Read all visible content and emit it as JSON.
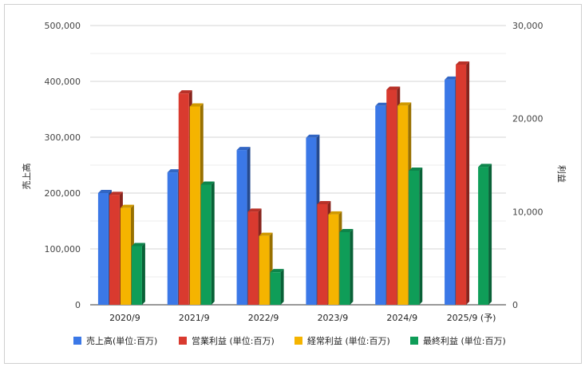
{
  "chart_data": {
    "type": "bar",
    "categories": [
      "2020/9",
      "2021/9",
      "2022/9",
      "2023/9",
      "2024/9",
      "2025/9 (予)"
    ],
    "series": [
      {
        "name": "売上高(単位:百万)",
        "axis": "left",
        "color": "#3b78e7",
        "values": [
          200000,
          237000,
          277000,
          299000,
          356000,
          403000
        ]
      },
      {
        "name": "営業利益 (単位:百万)",
        "axis": "right",
        "color": "#d93a2f",
        "values": [
          11800,
          22700,
          10000,
          10800,
          23100,
          25800
        ]
      },
      {
        "name": "経常利益 (単位:百万)",
        "axis": "right",
        "color": "#f5b400",
        "values": [
          10400,
          21300,
          7400,
          9700,
          21400,
          null
        ]
      },
      {
        "name": "最終利益 (単位:百万)",
        "axis": "right",
        "color": "#0f9d58",
        "values": [
          6300,
          12900,
          3500,
          7800,
          14400,
          14800
        ]
      }
    ],
    "left_axis": {
      "title": "売上高",
      "min": 0,
      "max": 500000,
      "ticks": [
        "0",
        "100,000",
        "200,000",
        "300,000",
        "400,000",
        "500,000"
      ]
    },
    "right_axis": {
      "title": "利益",
      "min": 0,
      "max": 30000,
      "ticks": [
        "0",
        "10,000",
        "20,000",
        "30,000"
      ]
    },
    "grid": true,
    "legend_position": "bottom"
  }
}
